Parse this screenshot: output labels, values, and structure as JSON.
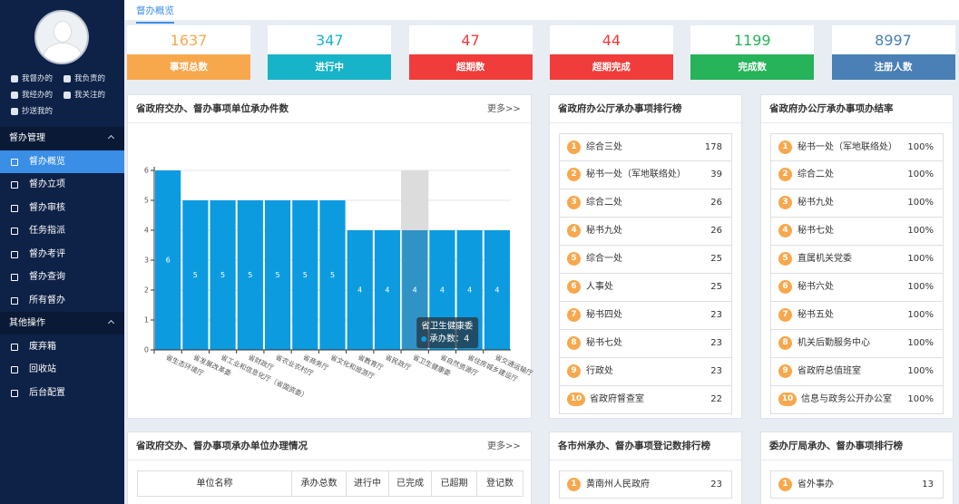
{
  "sidebar": {
    "user_links": [
      "我督办的",
      "我负责的",
      "我经办的",
      "我关注的",
      "抄送我的"
    ],
    "menus": [
      {
        "title": "督办管理",
        "items": [
          "督办概览",
          "督办立项",
          "督办审核",
          "任务指派",
          "督办考评",
          "督办查询",
          "所有督办"
        ]
      },
      {
        "title": "其他操作",
        "items": [
          "废弃箱",
          "回收站",
          "后台配置"
        ]
      }
    ]
  },
  "breadcrumb": "督办概览",
  "stats": [
    {
      "value": 1637,
      "label": "事项总数",
      "color": "#f7a84d"
    },
    {
      "value": 347,
      "label": "进行中",
      "color": "#17b3c8"
    },
    {
      "value": 47,
      "label": "超期数",
      "color": "#f03c3a"
    },
    {
      "value": 44,
      "label": "超期完成",
      "color": "#f03c3a"
    },
    {
      "value": 1199,
      "label": "完成数",
      "color": "#27b35a"
    },
    {
      "value": 8997,
      "label": "注册人数",
      "color": "#4a80b6"
    }
  ],
  "chart_more": "更多>>",
  "chart_data": {
    "type": "bar",
    "title": "省政府交办、督办事项单位承办件数",
    "categories": [
      "省生态环境厅",
      "省发展改革委",
      "省工业和信息化厅（省国资委）",
      "省财政厅",
      "省农业农村厅",
      "省商务厅",
      "省文化和旅游厅",
      "省教育厅",
      "省民政厅",
      "省卫生健康委",
      "省自然资源厅",
      "省住房城乡建设厅",
      "省交通运输厅"
    ],
    "values": [
      6,
      5,
      5,
      5,
      5,
      5,
      5,
      4,
      4,
      4,
      4,
      4,
      4
    ],
    "color": "#0d9be0",
    "highlight_color": "#2f93c6",
    "ylim": [
      0,
      6
    ],
    "yticks": [
      0,
      1,
      2,
      3,
      4,
      5,
      6
    ],
    "grid": true,
    "tooltip": {
      "index": 9,
      "title": "省卫生健康委",
      "text": "承办数：4"
    }
  },
  "rank_office": {
    "title": "省政府办公厅承办事项排行榜",
    "items": [
      {
        "rank": 1,
        "name": "综合三处",
        "value": 178
      },
      {
        "rank": 2,
        "name": "秘书一处（军地联络处）",
        "value": 39
      },
      {
        "rank": 3,
        "name": "综合二处",
        "value": 26
      },
      {
        "rank": 4,
        "name": "秘书九处",
        "value": 26
      },
      {
        "rank": 5,
        "name": "综合一处",
        "value": 25
      },
      {
        "rank": 6,
        "name": "人事处",
        "value": 25
      },
      {
        "rank": 7,
        "name": "秘书四处",
        "value": 23
      },
      {
        "rank": 8,
        "name": "秘书七处",
        "value": 23
      },
      {
        "rank": 9,
        "name": "行政处",
        "value": 23
      },
      {
        "rank": 10,
        "name": "省政府督查室",
        "value": 22
      }
    ]
  },
  "completion_rate": {
    "title": "省政府办公厅承办事项办结率",
    "items": [
      {
        "rank": 1,
        "name": "秘书一处（军地联络处）",
        "value": "100%"
      },
      {
        "rank": 2,
        "name": "综合二处",
        "value": "100%"
      },
      {
        "rank": 3,
        "name": "秘书九处",
        "value": "100%"
      },
      {
        "rank": 4,
        "name": "秘书七处",
        "value": "100%"
      },
      {
        "rank": 5,
        "name": "直属机关党委",
        "value": "100%"
      },
      {
        "rank": 6,
        "name": "秘书六处",
        "value": "100%"
      },
      {
        "rank": 7,
        "name": "秘书五处",
        "value": "100%"
      },
      {
        "rank": 8,
        "name": "机关后勤服务中心",
        "value": "100%"
      },
      {
        "rank": 9,
        "name": "省政府总值班室",
        "value": "100%"
      },
      {
        "rank": 10,
        "name": "信息与政务公开办公室",
        "value": "100%"
      }
    ]
  },
  "unit_table": {
    "title": "省政府交办、督办事项承办单位办理情况",
    "more": "更多>>",
    "columns": [
      "单位名称",
      "承办总数",
      "进行中",
      "已完成",
      "已超期",
      "登记数"
    ]
  },
  "city_rank": {
    "title": "各市州承办、督办事项登记数排行榜",
    "items": [
      {
        "rank": 1,
        "name": "黄南州人民政府",
        "value": 23
      }
    ]
  },
  "dept_rank": {
    "title": "委办厅局承办、督办事项排行榜",
    "items": [
      {
        "rank": 1,
        "name": "省外事办",
        "value": 13
      }
    ]
  }
}
